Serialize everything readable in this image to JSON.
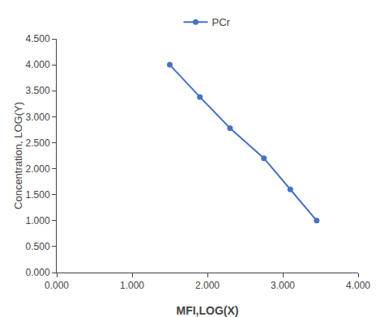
{
  "chart_data": {
    "type": "line",
    "x": [
      1.5,
      1.9,
      2.3,
      2.75,
      3.1,
      3.45
    ],
    "series": [
      {
        "name": "PCr",
        "color": "#4472C4",
        "marker": "circle",
        "line_style": "solid",
        "values": [
          4.0,
          3.38,
          2.78,
          2.2,
          1.6,
          1.0
        ]
      }
    ],
    "xlabel": "MFI,LOG(X)",
    "ylabel": "Concentration, LOG(Y)",
    "xlim": [
      0.0,
      4.0
    ],
    "ylim": [
      0.0,
      4.5
    ],
    "xticks": [
      {
        "value": 0.0,
        "label": "0.000"
      },
      {
        "value": 1.0,
        "label": "1.000"
      },
      {
        "value": 2.0,
        "label": "2.000"
      },
      {
        "value": 3.0,
        "label": "3.000"
      },
      {
        "value": 4.0,
        "label": "4.000"
      }
    ],
    "yticks": [
      {
        "value": 0.0,
        "label": "0.000"
      },
      {
        "value": 0.5,
        "label": "0.500"
      },
      {
        "value": 1.0,
        "label": "1.000"
      },
      {
        "value": 1.5,
        "label": "1.500"
      },
      {
        "value": 2.0,
        "label": "2.000"
      },
      {
        "value": 2.5,
        "label": "2.500"
      },
      {
        "value": 3.0,
        "label": "3.000"
      },
      {
        "value": 3.5,
        "label": "3.500"
      },
      {
        "value": 4.0,
        "label": "4.000"
      },
      {
        "value": 4.5,
        "label": "4.500"
      }
    ],
    "grid": false,
    "legend": "top"
  }
}
